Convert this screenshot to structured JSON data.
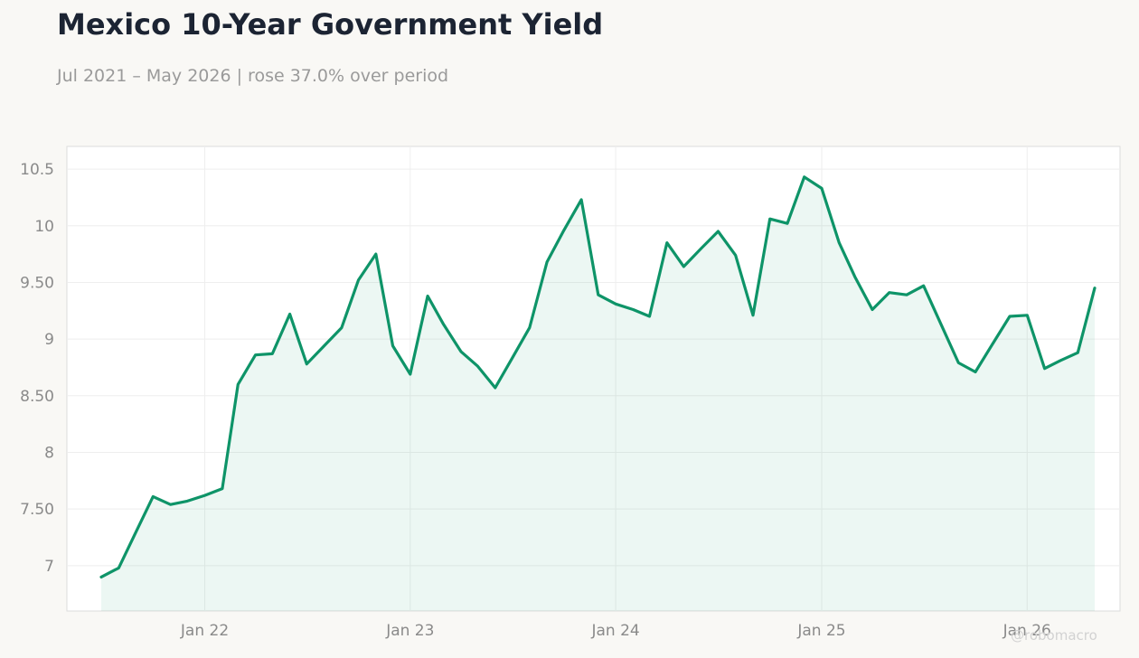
{
  "header": {
    "title": "Mexico 10-Year Government Yield",
    "subtitle": "Jul 2021 – May 2026 | rose 37.0% over period"
  },
  "watermark": "@robomacro",
  "colors": {
    "line": "#0e9468",
    "fill": "#0e9468",
    "grid": "#eeeeee",
    "tick_text": "#8a8a8a",
    "background": "#f9f8f5",
    "plot_background": "#ffffff"
  },
  "chart_data": {
    "type": "area",
    "title": "Mexico 10-Year Government Yield",
    "subtitle": "Jul 2021 – May 2026 | rose 37.0% over period",
    "xlabel": "",
    "ylabel": "",
    "ylim": [
      6.6,
      10.7
    ],
    "xlim": [
      "2021-05-01",
      "2026-06-15"
    ],
    "grid": true,
    "legend": "none",
    "yticks": [
      7,
      7.5,
      8,
      8.5,
      9,
      9.5,
      10,
      10.5
    ],
    "ytick_labels": [
      "7",
      "7.50",
      "8",
      "8.50",
      "9",
      "9.50",
      "10",
      "10.5"
    ],
    "xticks": [
      "2022-01-01",
      "2023-01-01",
      "2024-01-01",
      "2025-01-01",
      "2026-01-01"
    ],
    "xtick_labels": [
      "Jan 22",
      "Jan 23",
      "Jan 24",
      "Jan 25",
      "Jan 26"
    ],
    "series": [
      {
        "x": [
          "2021-07-01",
          "2021-08-01",
          "2021-09-01",
          "2021-10-01",
          "2021-11-01",
          "2021-12-01",
          "2022-01-01",
          "2022-02-01",
          "2022-03-01",
          "2022-04-01",
          "2022-05-01",
          "2022-06-01",
          "2022-07-01",
          "2022-08-01",
          "2022-09-01",
          "2022-10-01",
          "2022-11-01",
          "2022-12-01",
          "2023-01-01",
          "2023-02-01",
          "2023-03-01",
          "2023-04-01",
          "2023-05-01",
          "2023-06-01",
          "2023-07-01",
          "2023-08-01",
          "2023-09-01",
          "2023-10-01",
          "2023-11-01",
          "2023-12-01",
          "2024-01-01",
          "2024-02-01",
          "2024-03-01",
          "2024-04-01",
          "2024-05-01",
          "2024-06-01",
          "2024-07-01",
          "2024-08-01",
          "2024-09-01",
          "2024-10-01",
          "2024-11-01",
          "2024-12-01",
          "2025-01-01",
          "2025-02-01",
          "2025-03-01",
          "2025-04-01",
          "2025-05-01",
          "2025-06-01",
          "2025-07-01",
          "2025-08-01",
          "2025-09-01",
          "2025-10-01",
          "2025-11-01",
          "2025-12-01",
          "2026-01-01",
          "2026-02-01",
          "2026-03-01",
          "2026-04-01",
          "2026-05-01"
        ],
        "values": [
          6.9,
          6.98,
          7.3,
          7.61,
          7.54,
          7.57,
          7.62,
          7.68,
          8.6,
          8.86,
          8.87,
          9.22,
          8.78,
          8.94,
          9.1,
          9.52,
          9.75,
          8.94,
          8.69,
          9.38,
          9.13,
          8.89,
          8.76,
          8.57,
          8.83,
          9.1,
          9.68,
          9.96,
          10.23,
          9.39,
          9.31,
          9.26,
          9.2,
          9.85,
          9.64,
          9.8,
          9.95,
          9.74,
          9.21,
          10.06,
          10.02,
          10.43,
          10.33,
          9.85,
          9.55,
          9.26,
          9.41,
          9.39,
          9.47,
          9.13,
          8.79,
          8.71,
          8.96,
          9.2,
          9.21,
          8.74,
          8.81,
          8.88,
          9.45
        ]
      }
    ]
  }
}
